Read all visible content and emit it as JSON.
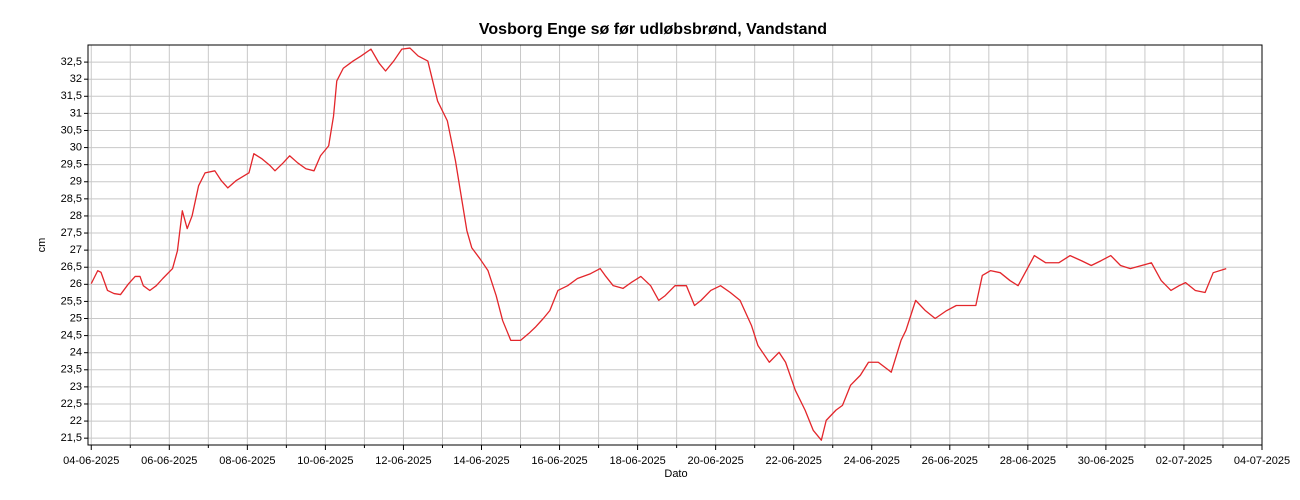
{
  "chart_data": {
    "type": "line",
    "title": "Vosborg Enge sø før udløbsbrønd, Vandstand",
    "xlabel": "Dato",
    "ylabel": "cm",
    "color": "#e3262b",
    "grid": true,
    "x": [
      "04-06-2025 00:00",
      "04-06-2025 04:00",
      "04-06-2025 06:00",
      "04-06-2025 10:00",
      "04-06-2025 14:00",
      "04-06-2025 18:00",
      "04-06-2025 23:00",
      "05-06-2025 03:00",
      "05-06-2025 06:00",
      "05-06-2025 08:00",
      "05-06-2025 12:00",
      "05-06-2025 16:00",
      "05-06-2025 20:00",
      "06-06-2025 02:00",
      "06-06-2025 05:00",
      "06-06-2025 08:00",
      "06-06-2025 11:00",
      "06-06-2025 14:00",
      "06-06-2025 18:00",
      "06-06-2025 22:00",
      "07-06-2025 04:00",
      "07-06-2025 08:00",
      "07-06-2025 12:00",
      "07-06-2025 17:00",
      "08-06-2025 01:00",
      "08-06-2025 04:00",
      "08-06-2025 09:00",
      "08-06-2025 14:00",
      "08-06-2025 17:00",
      "08-06-2025 22:00",
      "09-06-2025 02:00",
      "09-06-2025 07:00",
      "09-06-2025 12:00",
      "09-06-2025 17:00",
      "09-06-2025 21:00",
      "10-06-2025 02:00",
      "10-06-2025 05:00",
      "10-06-2025 07:00",
      "10-06-2025 11:00",
      "10-06-2025 17:00",
      "10-06-2025 22:00",
      "11-06-2025 04:00",
      "11-06-2025 09:00",
      "11-06-2025 13:00",
      "11-06-2025 18:00",
      "11-06-2025 23:00",
      "12-06-2025 04:00",
      "12-06-2025 09:00",
      "12-06-2025 15:00",
      "12-06-2025 21:00",
      "13-06-2025 03:00",
      "13-06-2025 08:00",
      "13-06-2025 12:00",
      "13-06-2025 15:00",
      "13-06-2025 18:00",
      "13-06-2025 23:00",
      "14-06-2025 04:00",
      "14-06-2025 09:00",
      "14-06-2025 13:00",
      "14-06-2025 18:00",
      "15-06-2025 00:00",
      "15-06-2025 05:00",
      "15-06-2025 09:00",
      "15-06-2025 14:00",
      "15-06-2025 18:00",
      "15-06-2025 23:00",
      "16-06-2025 05:00",
      "16-06-2025 11:00",
      "16-06-2025 19:00",
      "17-06-2025 01:00",
      "17-06-2025 04:00",
      "17-06-2025 09:00",
      "17-06-2025 15:00",
      "17-06-2025 20:00",
      "18-06-2025 02:00",
      "18-06-2025 08:00",
      "18-06-2025 13:00",
      "18-06-2025 17:00",
      "18-06-2025 23:00",
      "19-06-2025 06:00",
      "19-06-2025 11:00",
      "19-06-2025 15:00",
      "19-06-2025 21:00",
      "20-06-2025 03:00",
      "20-06-2025 09:00",
      "20-06-2025 15:00",
      "20-06-2025 22:00",
      "21-06-2025 02:00",
      "21-06-2025 09:00",
      "21-06-2025 15:00",
      "21-06-2025 19:00",
      "22-06-2025 01:00",
      "22-06-2025 07:00",
      "22-06-2025 12:00",
      "22-06-2025 17:00",
      "22-06-2025 20:00",
      "23-06-2025 02:00",
      "23-06-2025 06:00",
      "23-06-2025 11:00",
      "23-06-2025 17:00",
      "23-06-2025 22:00",
      "24-06-2025 04:00",
      "24-06-2025 12:00",
      "24-06-2025 18:00",
      "24-06-2025 21:00",
      "25-06-2025 03:00",
      "25-06-2025 09:00",
      "25-06-2025 15:00",
      "25-06-2025 22:00",
      "26-06-2025 04:00",
      "26-06-2025 10:00",
      "26-06-2025 16:00",
      "26-06-2025 20:00",
      "27-06-2025 01:00",
      "27-06-2025 07:00",
      "27-06-2025 13:00",
      "27-06-2025 18:00",
      "27-06-2025 23:00",
      "28-06-2025 04:00",
      "28-06-2025 11:00",
      "28-06-2025 19:00",
      "29-06-2025 02:00",
      "29-06-2025 09:00",
      "29-06-2025 15:00",
      "29-06-2025 21:00",
      "30-06-2025 03:00",
      "30-06-2025 09:00",
      "30-06-2025 15:00",
      "30-06-2025 22:00",
      "01-07-2025 04:00",
      "01-07-2025 10:00",
      "01-07-2025 16:00",
      "01-07-2025 21:00",
      "02-07-2025 01:00",
      "02-07-2025 07:00",
      "02-07-2025 13:00",
      "02-07-2025 18:00",
      "03-07-2025 02:00"
    ],
    "values": [
      26.02,
      26.4,
      26.35,
      25.82,
      25.73,
      25.7,
      26.02,
      26.23,
      26.23,
      25.96,
      25.82,
      25.96,
      26.17,
      26.46,
      26.98,
      28.15,
      27.63,
      28.0,
      28.88,
      29.26,
      29.32,
      29.03,
      28.82,
      29.03,
      29.26,
      29.82,
      29.67,
      29.47,
      29.32,
      29.55,
      29.76,
      29.55,
      29.38,
      29.32,
      29.76,
      30.05,
      30.92,
      31.95,
      32.32,
      32.53,
      32.68,
      32.88,
      32.47,
      32.24,
      32.53,
      32.88,
      32.91,
      32.68,
      32.53,
      31.36,
      30.78,
      29.61,
      28.44,
      27.57,
      27.07,
      26.75,
      26.4,
      25.67,
      24.94,
      24.36,
      24.36,
      24.56,
      24.74,
      25.0,
      25.23,
      25.82,
      25.96,
      26.17,
      26.31,
      26.46,
      26.26,
      25.96,
      25.88,
      26.05,
      26.23,
      25.96,
      25.53,
      25.67,
      25.96,
      25.96,
      25.38,
      25.53,
      25.82,
      25.96,
      25.76,
      25.53,
      24.8,
      24.21,
      23.72,
      24.01,
      23.72,
      22.9,
      22.32,
      21.73,
      21.44,
      22.02,
      22.32,
      22.46,
      23.05,
      23.34,
      23.72,
      23.72,
      23.43,
      24.36,
      24.65,
      25.53,
      25.23,
      25.0,
      25.23,
      25.38,
      25.38,
      25.38,
      26.26,
      26.4,
      26.34,
      26.11,
      25.96,
      26.4,
      26.84,
      26.63,
      26.63,
      26.84,
      26.69,
      26.55,
      26.69,
      26.84,
      26.55,
      26.46,
      26.55,
      26.63,
      26.11,
      25.82,
      25.96,
      26.05,
      25.82,
      25.76,
      26.34,
      26.46
    ],
    "xlim": [
      "03-06-2025 22:00",
      "04-07-2025 00:00"
    ],
    "xticks": [
      "04-06-2025",
      "06-06-2025",
      "08-06-2025",
      "10-06-2025",
      "12-06-2025",
      "14-06-2025",
      "16-06-2025",
      "18-06-2025",
      "20-06-2025",
      "22-06-2025",
      "24-06-2025",
      "26-06-2025",
      "28-06-2025",
      "30-06-2025",
      "02-07-2025",
      "04-07-2025"
    ],
    "ylim": [
      21.3,
      33.0
    ],
    "yticks": [
      {
        "value": 21.5,
        "label": "21,5"
      },
      22,
      {
        "value": 22.5,
        "label": "22,5"
      },
      23,
      {
        "value": 23.5,
        "label": "23,5"
      },
      24,
      {
        "value": 24.5,
        "label": "24,5"
      },
      25,
      {
        "value": 25.5,
        "label": "25,5"
      },
      26,
      {
        "value": 26.5,
        "label": "26,5"
      },
      27,
      {
        "value": 27.5,
        "label": "27,5"
      },
      28,
      {
        "value": 28.5,
        "label": "28,5"
      },
      29,
      {
        "value": 29.5,
        "label": "29,5"
      },
      30,
      {
        "value": 30.5,
        "label": "30,5"
      },
      31,
      {
        "value": 31.5,
        "label": "31,5"
      },
      32,
      {
        "value": 32.5,
        "label": "32,5"
      }
    ]
  }
}
